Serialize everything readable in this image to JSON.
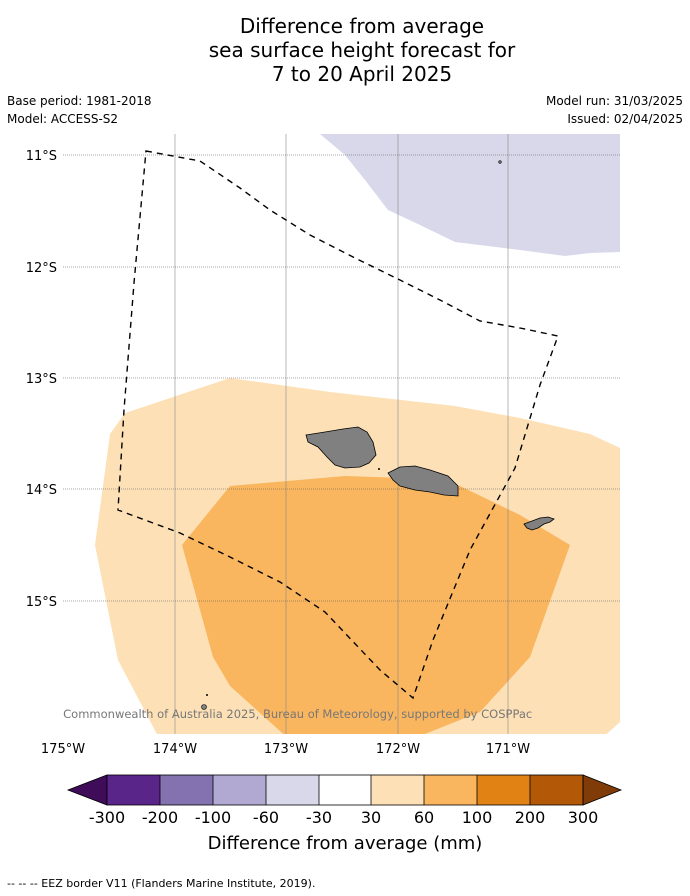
{
  "title": {
    "line1": "Difference from average",
    "line2": "sea surface height forecast for",
    "line3": "7 to 20 April 2025"
  },
  "meta": {
    "base_period": "Base period: 1981-2018",
    "model": "Model: ACCESS-S2",
    "model_run": "Model run: 31/03/2025",
    "issued": "Issued: 02/04/2025"
  },
  "map": {
    "lat_labels": [
      "11°S",
      "12°S",
      "13°S",
      "14°S",
      "15°S"
    ],
    "lon_labels": [
      "175°W",
      "174°W",
      "173°W",
      "172°W",
      "171°W"
    ],
    "copyright": "© Commonwealth of Australia 2025, Bureau of Meteorology, supported by COSPPac",
    "colors": {
      "band_minus60_minus30": "#d8d8ea",
      "band_30_60": "#fde0b6",
      "band_60_100": "#f9b65f",
      "land": "#808080",
      "eez": "#000000"
    }
  },
  "colorbar": {
    "ticks": [
      "-300",
      "-200",
      "-100",
      "-60",
      "-30",
      "30",
      "60",
      "100",
      "200",
      "300"
    ],
    "colors": [
      "#3f0c5a",
      "#5a2589",
      "#8371b0",
      "#b1a9d2",
      "#d8d8ea",
      "#ffffff",
      "#fde0b6",
      "#f9b65f",
      "#e08214",
      "#b35807",
      "#7f3b08"
    ],
    "title": "Difference from average (mm)"
  },
  "footnote": "--  --  -- EEZ border V11 (Flanders Marine Institute, 2019)."
}
